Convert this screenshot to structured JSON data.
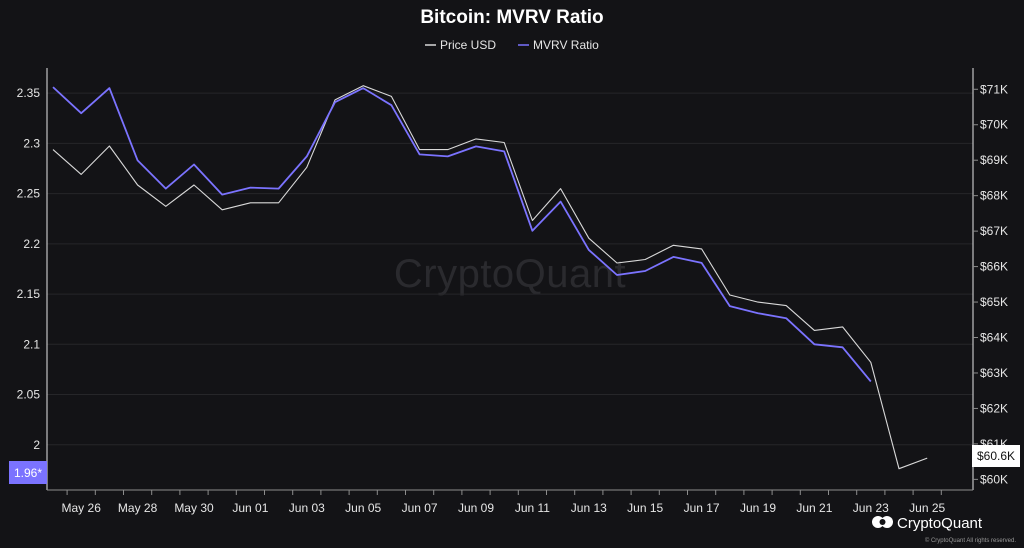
{
  "chart_data": {
    "type": "line",
    "title": "Bitcoin: MVRV Ratio",
    "x_tick_labels": [
      "May 26",
      "May 28",
      "May 30",
      "Jun 01",
      "Jun 03",
      "Jun 05",
      "Jun 07",
      "Jun 09",
      "Jun 11",
      "Jun 13",
      "Jun 15",
      "Jun 17",
      "Jun 19",
      "Jun 21",
      "Jun 23",
      "Jun 25"
    ],
    "x": [
      "May 25",
      "May 26",
      "May 27",
      "May 28",
      "May 29",
      "May 30",
      "May 31",
      "Jun 01",
      "Jun 02",
      "Jun 03",
      "Jun 04",
      "Jun 05",
      "Jun 06",
      "Jun 07",
      "Jun 08",
      "Jun 09",
      "Jun 10",
      "Jun 11",
      "Jun 12",
      "Jun 13",
      "Jun 14",
      "Jun 15",
      "Jun 16",
      "Jun 17",
      "Jun 18",
      "Jun 19",
      "Jun 20",
      "Jun 21",
      "Jun 22",
      "Jun 23",
      "Jun 24",
      "Jun 25"
    ],
    "series": [
      {
        "name": "Price USD",
        "axis": "right",
        "color": "#d9d9d9",
        "values": [
          69.3,
          68.6,
          69.4,
          68.3,
          67.7,
          68.3,
          67.6,
          67.8,
          67.8,
          68.8,
          70.7,
          71.1,
          70.8,
          69.3,
          69.3,
          69.6,
          69.5,
          67.3,
          68.2,
          66.8,
          66.1,
          66.2,
          66.6,
          66.5,
          65.2,
          65.0,
          64.9,
          64.2,
          64.3,
          63.3,
          60.3,
          60.6
        ]
      },
      {
        "name": "MVRV Ratio",
        "axis": "left",
        "color": "#7b73ff",
        "values": [
          2.356,
          2.33,
          2.355,
          2.283,
          2.255,
          2.279,
          2.249,
          2.256,
          2.255,
          2.287,
          2.341,
          2.355,
          2.338,
          2.289,
          2.287,
          2.297,
          2.292,
          2.213,
          2.242,
          2.194,
          2.169,
          2.173,
          2.187,
          2.181,
          2.138,
          2.131,
          2.126,
          2.1,
          2.097,
          2.063,
          null,
          null
        ]
      }
    ],
    "y_left": {
      "ticks": [
        "2",
        "2.05",
        "2.1",
        "2.15",
        "2.2",
        "2.25",
        "2.3",
        "2.35"
      ],
      "range": [
        1.955,
        2.375
      ]
    },
    "y_right": {
      "ticks": [
        "$60K",
        "$61K",
        "$62K",
        "$63K",
        "$64K",
        "$65K",
        "$66K",
        "$67K",
        "$68K",
        "$69K",
        "$70K",
        "$71K"
      ],
      "range": [
        59.7,
        71.6
      ],
      "unit": "K USD"
    },
    "left_badge": "1.96*",
    "right_badge": "$60.6K",
    "grid": true,
    "legend_position": "top-center"
  },
  "watermark": "CryptoQuant",
  "brand": {
    "name": "CryptoQuant",
    "copyright": "© CryptoQuant All rights reserved."
  },
  "colors": {
    "background": "#131316",
    "price": "#d9d9d9",
    "mvrv": "#7b73ff"
  },
  "icons": {
    "brand_logo": "cryptoquant-logo-icon"
  }
}
